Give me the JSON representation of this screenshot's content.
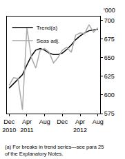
{
  "chart_data": {
    "type": "line",
    "ylabel": "'000",
    "categories": [
      "Dec 2010",
      null,
      null,
      null,
      "Apr 2011",
      null,
      null,
      null,
      "Aug",
      null,
      null,
      null,
      "Dec",
      null,
      null,
      null,
      "Apr 2012",
      null,
      null,
      null,
      "Aug"
    ],
    "series": [
      {
        "name": "Trend(a)",
        "color": "#000000",
        "values": [
          609,
          615,
          621,
          627,
          640,
          652,
          660,
          662,
          660,
          656,
          654,
          654,
          656,
          661,
          667,
          674,
          679,
          683,
          686,
          687,
          688
        ]
      },
      {
        "name": "Seas adj.",
        "color": "#aaaaaa",
        "values": [
          613,
          623,
          622,
          580,
          690,
          650,
          636,
          660,
          662,
          657,
          643,
          650,
          660,
          664,
          657,
          680,
          683,
          682,
          694,
          684,
          690
        ]
      }
    ],
    "ylim": [
      575,
      705
    ],
    "yticks": [
      575,
      600,
      625,
      650,
      675,
      700
    ],
    "grid": false,
    "legend": "top-left",
    "footnote": [
      "(a) For breaks in trend series—see para 25",
      "of the Explanatory Notes."
    ]
  }
}
